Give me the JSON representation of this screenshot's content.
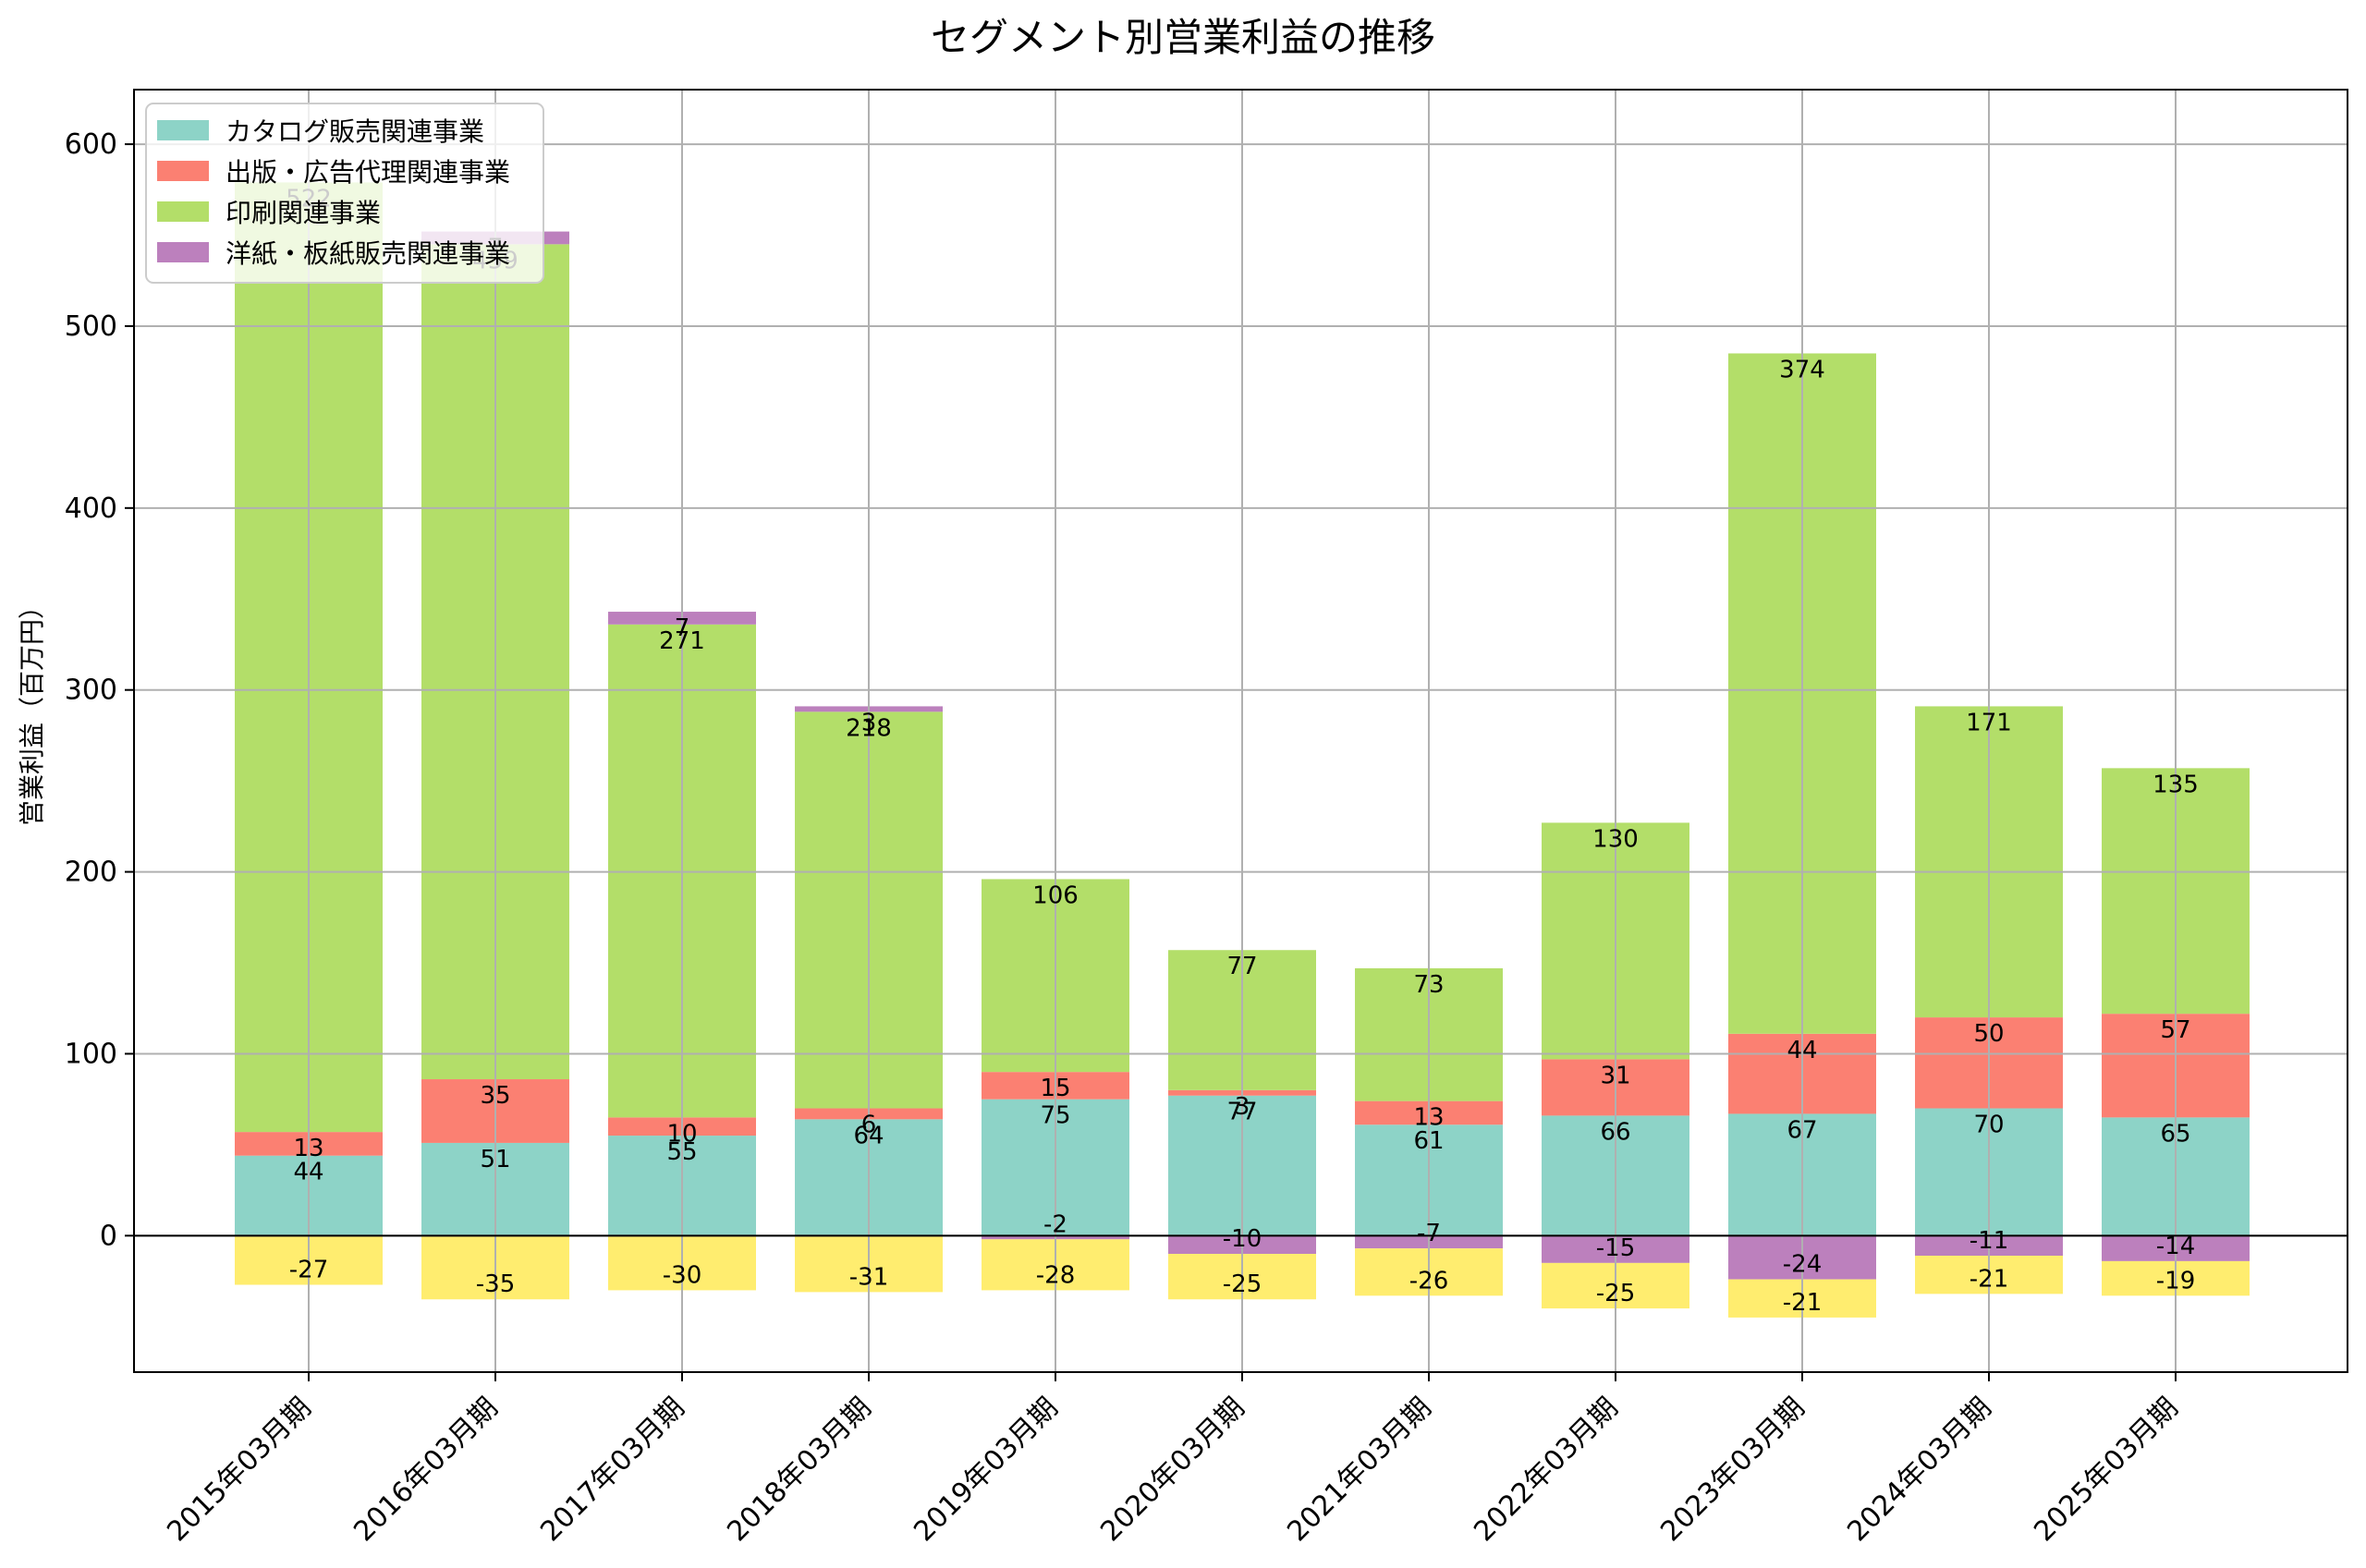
{
  "chart_data": {
    "type": "bar",
    "stacked": true,
    "title": "セグメント別営業利益の推移",
    "xlabel": "",
    "ylabel": "営業利益（百万円）",
    "ylim": [
      -75,
      630
    ],
    "yticks": [
      0,
      100,
      200,
      300,
      400,
      500,
      600
    ],
    "grid": true,
    "legend_position": "top-left",
    "categories": [
      "2015年03月期",
      "2016年03月期",
      "2017年03月期",
      "2018年03月期",
      "2019年03月期",
      "2020年03月期",
      "2021年03月期",
      "2022年03月期",
      "2023年03月期",
      "2024年03月期",
      "2025年03月期"
    ],
    "series": [
      {
        "name": "カタログ販売関連事業",
        "color": "#8dd3c7",
        "values": [
          44,
          51,
          55,
          64,
          75,
          77,
          61,
          66,
          67,
          70,
          65
        ]
      },
      {
        "name": "出版・広告代理関連事業",
        "color": "#fb8072",
        "values": [
          13,
          35,
          10,
          6,
          15,
          3,
          13,
          31,
          44,
          50,
          57
        ]
      },
      {
        "name": "印刷関連事業",
        "color": "#b3de69",
        "values": [
          522,
          459,
          271,
          218,
          106,
          77,
          73,
          130,
          374,
          171,
          135
        ]
      },
      {
        "name": "洋紙・板紙販売関連事業",
        "color": "#bc80bd",
        "values": [
          null,
          7,
          7,
          3,
          -2,
          -10,
          -7,
          -15,
          -24,
          -11,
          -14
        ]
      },
      {
        "name": "",
        "color": "#ffed6f",
        "values": [
          -27,
          -35,
          -30,
          -31,
          -28,
          -25,
          -26,
          -25,
          -21,
          -21,
          -19
        ]
      }
    ]
  }
}
